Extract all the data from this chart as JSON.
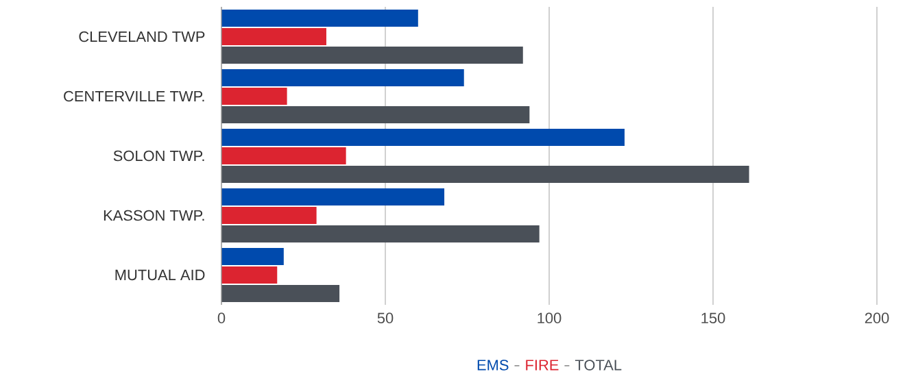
{
  "chart_data": {
    "type": "bar",
    "orientation": "horizontal",
    "categories": [
      "CLEVELAND TWP",
      "CENTERVILLE TWP.",
      "SOLON TWP.",
      "KASSON TWP.",
      "MUTUAL AID"
    ],
    "series": [
      {
        "name": "EMS",
        "color": "#004aad",
        "values": [
          60,
          74,
          123,
          68,
          19
        ]
      },
      {
        "name": "FIRE",
        "color": "#dc2430",
        "values": [
          32,
          20,
          38,
          29,
          17
        ]
      },
      {
        "name": "TOTAL",
        "color": "#4a5058",
        "values": [
          92,
          94,
          161,
          97,
          36
        ]
      }
    ],
    "xlim": [
      0,
      200
    ],
    "xticks": [
      0,
      50,
      100,
      150,
      200
    ],
    "grid": "x",
    "legend": "bottom"
  }
}
